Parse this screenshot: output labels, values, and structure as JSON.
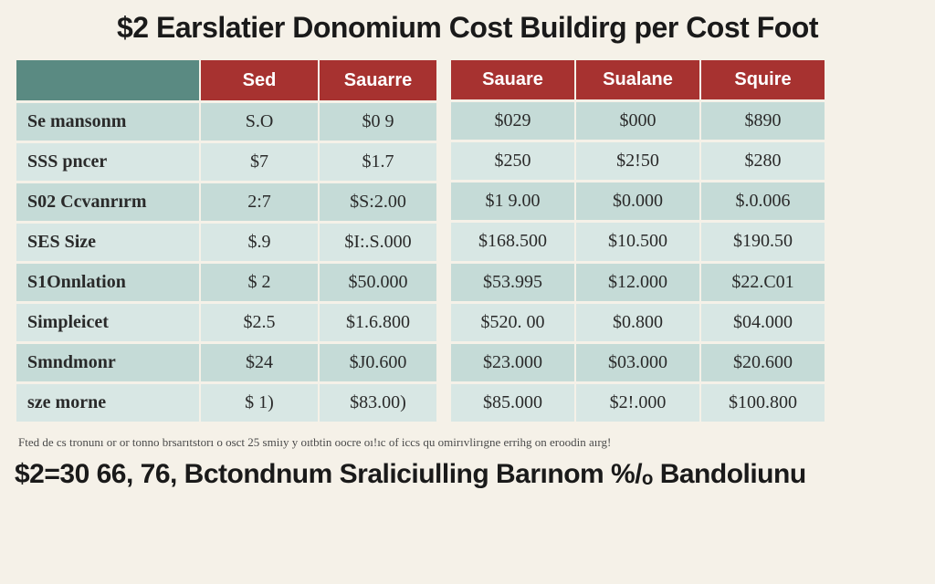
{
  "title": "$2 Earslatier Donomium Cost Buildirg per Cost Foot",
  "table": {
    "left_headers": [
      "",
      "Sed",
      "Sauarre"
    ],
    "right_headers": [
      "Sauare",
      "Sualane",
      "Squire"
    ],
    "rows": [
      {
        "label": "Se mansonm",
        "l": [
          "S.O",
          "$0 9"
        ],
        "r": [
          "$029",
          "$000",
          "$890"
        ]
      },
      {
        "label": "SSS pncer",
        "l": [
          "$7",
          "$1.7"
        ],
        "r": [
          "$250",
          "$2!50",
          "$280"
        ]
      },
      {
        "label": "S02 Ccvanrırm",
        "l": [
          "2:7",
          "$S:2.00"
        ],
        "r": [
          "$1 9.00",
          "$0.000",
          "$.0.006"
        ]
      },
      {
        "label": "SES Size",
        "l": [
          "$.9",
          "$I:.S.000"
        ],
        "r": [
          "$168.500",
          "$10.500",
          "$190.50"
        ]
      },
      {
        "label": "S1Onnlation",
        "l": [
          "$ 2",
          "$50.000"
        ],
        "r": [
          "$53.995",
          "$12.000",
          "$22.C01"
        ]
      },
      {
        "label": "Simpleicet",
        "l": [
          "$2.5",
          "$1.6.800"
        ],
        "r": [
          "$520. 00",
          "$0.800",
          "$04.000"
        ]
      },
      {
        "label": "Smndmonr",
        "l": [
          "$24",
          "$J0.600"
        ],
        "r": [
          "$23.000",
          "$03.000",
          "$20.600"
        ]
      },
      {
        "label": "sze morne",
        "l": [
          "$ 1)",
          "$83.00)"
        ],
        "r": [
          "$85.000",
          "$2!.000",
          "$100.800"
        ]
      }
    ]
  },
  "footnote": "Fted de cs tronunı or or tonno brsarıtstorı o osct 25 smiıy y oıtbtin oocre oı!ıc of iccs qu omirıvlirıgne errihg on eroodin aırg!",
  "bottom": "$2=30 66, 76, Bctondnum Sraliciulling Barınom %/ₒ Bandoliunu",
  "colors": {
    "header_red": "#a73230",
    "header_teal": "#5a8a82",
    "cell_bg": "#c5dbd7",
    "cell_alt": "#d8e7e4",
    "page_bg": "#f5f1e8"
  }
}
